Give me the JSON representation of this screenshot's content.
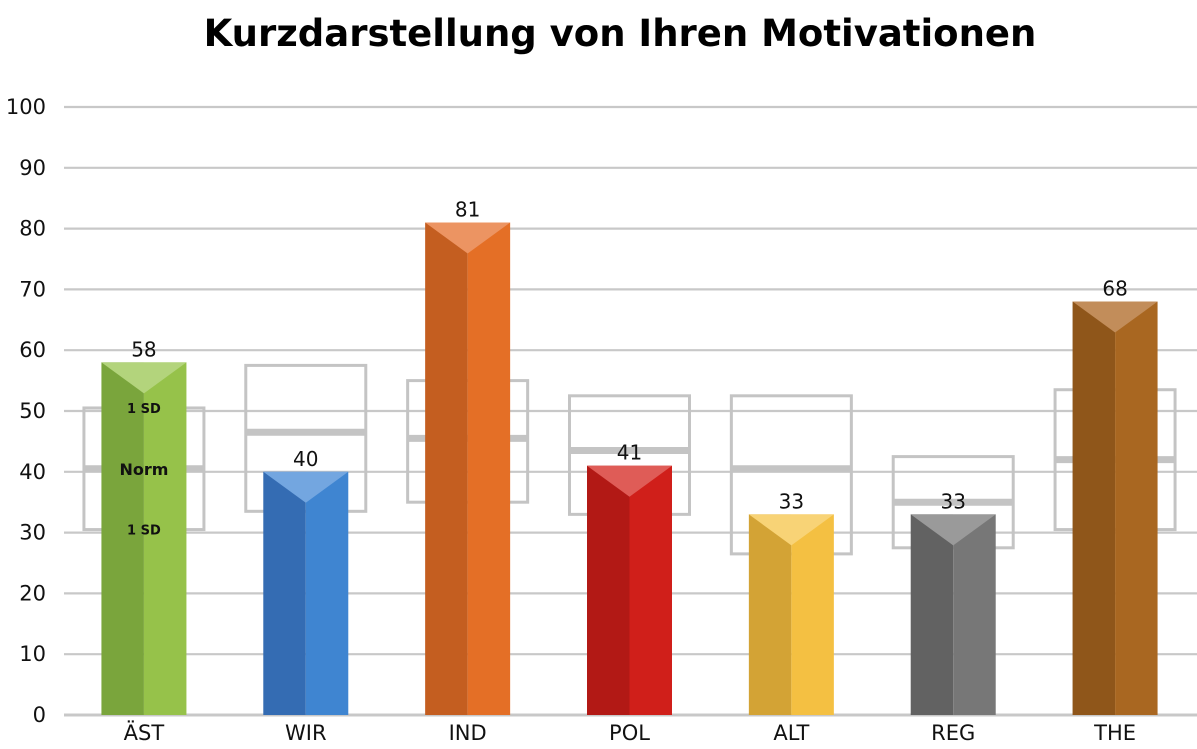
{
  "chart_data": {
    "type": "bar",
    "title": "Kurzdarstellung von Ihren Motivationen",
    "categories": [
      "ÄST",
      "WIR",
      "IND",
      "POL",
      "ALT",
      "REG",
      "THE"
    ],
    "values": [
      58,
      40,
      81,
      41,
      33,
      33,
      68
    ],
    "norm": [
      40.5,
      46.5,
      45.5,
      43.5,
      40.5,
      35,
      42
    ],
    "sd_upper": [
      50.5,
      57.5,
      55,
      52.5,
      52.5,
      42.5,
      53.5
    ],
    "sd_lower": [
      30.5,
      33.5,
      35,
      33,
      26.5,
      27.5,
      30.5
    ],
    "colors": [
      "#96c24a",
      "#3f85d1",
      "#e46f26",
      "#d01f1a",
      "#f4c042",
      "#777777",
      "#a96721"
    ],
    "dark_colors": [
      "#7aa53c",
      "#346cb3",
      "#c45e20",
      "#b21915",
      "#d3a335",
      "#626262",
      "#8f561a"
    ],
    "cap_colors": [
      "#b3d47c",
      "#73a6e0",
      "#ec9462",
      "#df5c57",
      "#f8d376",
      "#9a9a9a",
      "#c28d5a"
    ],
    "ylim": [
      0,
      100
    ],
    "yticks": [
      0,
      10,
      20,
      30,
      40,
      50,
      60,
      70,
      80,
      90,
      100
    ],
    "grid": true,
    "annotations": {
      "upper_sd": "1 SD",
      "norm": "Norm",
      "lower_sd": "1 SD"
    }
  }
}
